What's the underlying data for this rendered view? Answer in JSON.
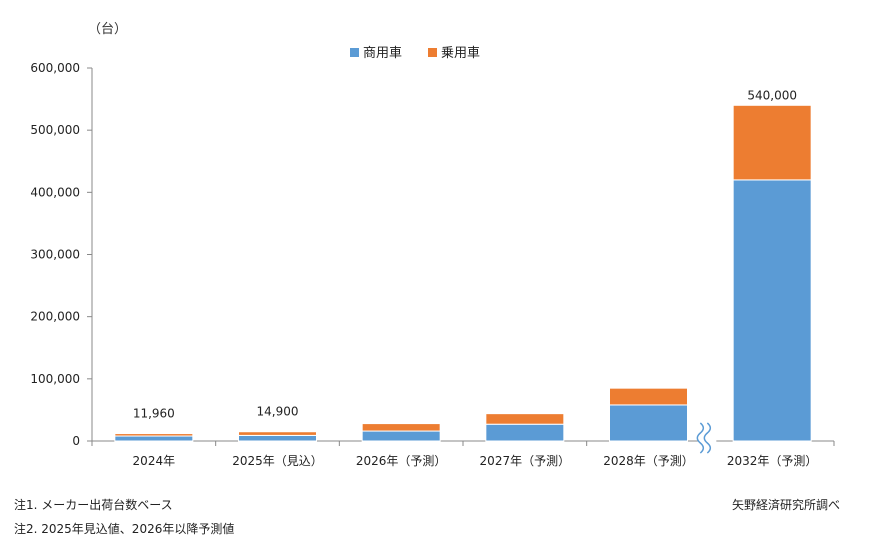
{
  "chart_data": {
    "type": "bar",
    "stacked": true,
    "unit_label": "（台）",
    "categories": [
      "2024年",
      "2025年（見込）",
      "2026年（予測）",
      "2027年（予測）",
      "2028年（予測）",
      "2032年（予測）"
    ],
    "series": [
      {
        "name": "商用車",
        "color": "#5B9BD5",
        "values": [
          8000,
          9000,
          16000,
          27000,
          58000,
          420000
        ]
      },
      {
        "name": "乗用車",
        "color": "#ED7D31",
        "values": [
          3960,
          5900,
          12000,
          17000,
          27000,
          120000
        ]
      }
    ],
    "total_labels": [
      "11,960",
      "14,900",
      "",
      "",
      "",
      "540,000"
    ],
    "yticks": [
      0,
      100000,
      200000,
      300000,
      400000,
      500000,
      600000
    ],
    "ytick_labels": [
      "0",
      "100,000",
      "200,000",
      "300,000",
      "400,000",
      "500,000",
      "600,000"
    ],
    "ylim": [
      0,
      600000
    ],
    "legend_position": "top-center",
    "axis_break": "between 2028年（予測） and 2032年（予測）"
  },
  "notes": {
    "note1": "注1. メーカー出荷台数ベース",
    "note2": "注2. 2025年見込値、2026年以降予測値",
    "source": "矢野経済研究所調べ"
  }
}
